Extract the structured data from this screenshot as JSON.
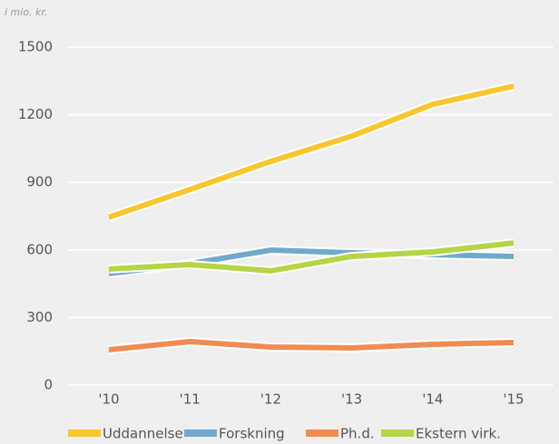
{
  "chart_data": {
    "type": "line",
    "y_label": "i mio. kr.",
    "categories": [
      "'10",
      "'11",
      "'12",
      "'13",
      "'14",
      "'15"
    ],
    "series": [
      {
        "name": "Uddannelse",
        "color": "#f7c72e",
        "values": [
          745,
          868,
          993,
          1105,
          1246,
          1327
        ]
      },
      {
        "name": "Forskning",
        "color": "#72a9c9",
        "values": [
          495,
          539,
          599,
          587,
          579,
          571
        ]
      },
      {
        "name": "Ph.d.",
        "color": "#f08c52",
        "values": [
          157,
          193,
          169,
          165,
          181,
          189
        ]
      },
      {
        "name": "Ekstern virk.",
        "color": "#b5d446",
        "values": [
          515,
          535,
          507,
          571,
          591,
          631
        ]
      }
    ],
    "ylim": [
      0,
      1500
    ],
    "yticks": [
      0,
      300,
      600,
      900,
      1200,
      1500
    ],
    "grid": true,
    "legend": "bottom"
  }
}
